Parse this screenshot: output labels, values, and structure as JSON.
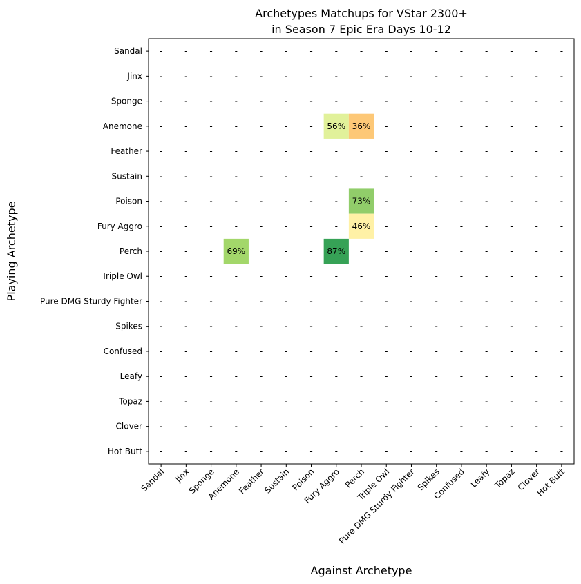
{
  "chart_data": {
    "type": "heatmap",
    "title": [
      "Archetypes Matchups for VStar 2300+",
      "in Season 7 Epic Era Days 10-12"
    ],
    "xlabel": "Against Archetype",
    "ylabel": "Playing Archetype",
    "rows": [
      "Sandal",
      "Jinx",
      "Sponge",
      "Anemone",
      "Feather",
      "Sustain",
      "Poison",
      "Fury Aggro",
      "Perch",
      "Triple Owl",
      "Pure DMG Sturdy Fighter",
      "Spikes",
      "Confused",
      "Leafy",
      "Topaz",
      "Clover",
      "Hot Butt"
    ],
    "columns": [
      "Sandal",
      "Jinx",
      "Sponge",
      "Anemone",
      "Feather",
      "Sustain",
      "Poison",
      "Fury Aggro",
      "Perch",
      "Triple Owl",
      "Pure DMG Sturdy Fighter",
      "Spikes",
      "Confused",
      "Leafy",
      "Topaz",
      "Clover",
      "Hot Butt"
    ],
    "missing_symbol": "-",
    "cells": [
      {
        "row": "Anemone",
        "column": "Fury Aggro",
        "value": 56,
        "label": "56%",
        "color": "#e1f19a"
      },
      {
        "row": "Anemone",
        "column": "Perch",
        "value": 36,
        "label": "36%",
        "color": "#fdc877"
      },
      {
        "row": "Poison",
        "column": "Perch",
        "value": 73,
        "label": "73%",
        "color": "#91cd6a"
      },
      {
        "row": "Fury Aggro",
        "column": "Perch",
        "value": 46,
        "label": "46%",
        "color": "#fff1a6"
      },
      {
        "row": "Perch",
        "column": "Anemone",
        "value": 69,
        "label": "69%",
        "color": "#a3d76a"
      },
      {
        "row": "Perch",
        "column": "Fury Aggro",
        "value": 87,
        "label": "87%",
        "color": "#36a256"
      }
    ],
    "grid": false,
    "legend": "none"
  }
}
